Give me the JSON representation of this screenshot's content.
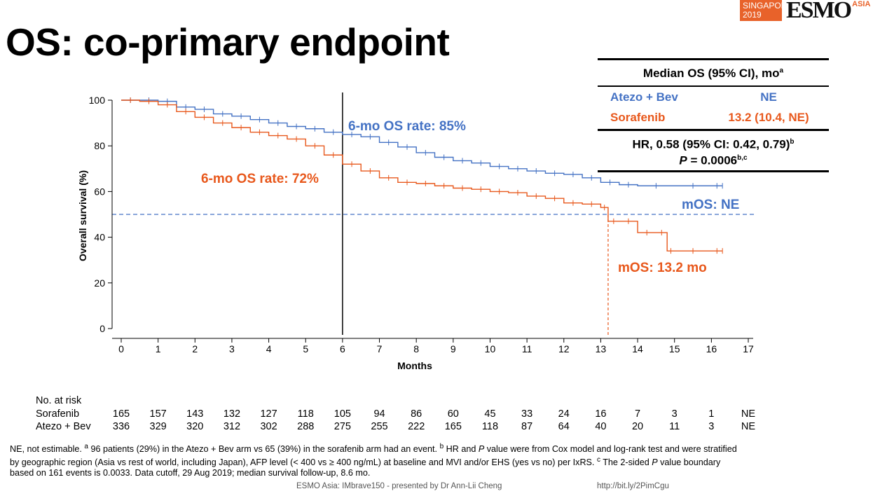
{
  "slide": {
    "title": "OS: co-primary endpoint",
    "logo": {
      "line1": "SINGAPORE",
      "line2": "2019",
      "word": "ESMO",
      "suffix": "ASIA"
    }
  },
  "table": {
    "header": "Median OS (95% CI), mo",
    "header_sup": "a",
    "rows": [
      {
        "arm": "Atezo + Bev",
        "value": "NE"
      },
      {
        "arm": "Sorafenib",
        "value": "13.2 (10.4, NE)"
      }
    ],
    "hr_text": "HR, 0.58 (95% CI: 0.42, 0.79)",
    "hr_sup": "b",
    "p_label": "P",
    "p_value": " = 0.0006",
    "p_sup": "b,c"
  },
  "risk_table": {
    "title": "No. at risk",
    "rows": [
      {
        "label": "Sorafenib",
        "values": [
          "165",
          "157",
          "143",
          "132",
          "127",
          "118",
          "105",
          "94",
          "86",
          "60",
          "45",
          "33",
          "24",
          "16",
          "7",
          "3",
          "1",
          "NE"
        ]
      },
      {
        "label": "Atezo + Bev",
        "values": [
          "336",
          "329",
          "320",
          "312",
          "302",
          "288",
          "275",
          "255",
          "222",
          "165",
          "118",
          "87",
          "64",
          "40",
          "20",
          "11",
          "3",
          "NE"
        ]
      }
    ]
  },
  "footnote": {
    "text_html": "NE, not estimable. <sup>a</sup> 96 patients (29%) in the Atezo + Bev arm vs 65 (39%) in the sorafenib arm had an event. <sup>b</sup> HR and <i>P</i> value were from Cox model and log-rank test and were stratified by geographic region (Asia vs rest of world, including Japan), AFP level (&lt; 400 vs &ge; 400 ng/mL) at baseline and MVI and/or EHS (yes vs no) per IxRS. <sup>c</sup> The 2-sided <i>P</i> value boundary based on 161 events is 0.0033. Data cutoff, 29 Aug 2019; median survival follow-up, 8.6 mo."
  },
  "credits": {
    "left": "ESMO Asia: IMbrave150 - presented by Dr Ann-Lii Cheng",
    "right": "http://bit.ly/2PimCgu"
  },
  "chart_data": {
    "type": "line",
    "title": "",
    "xlabel": "Months",
    "ylabel": "Overall survival (%)",
    "xlim": [
      0,
      17
    ],
    "ylim": [
      0,
      100
    ],
    "xticks": [
      0,
      1,
      2,
      3,
      4,
      5,
      6,
      7,
      8,
      9,
      10,
      11,
      12,
      13,
      14,
      15,
      16,
      17
    ],
    "yticks": [
      0,
      20,
      40,
      60,
      80,
      100
    ],
    "series": [
      {
        "name": "Atezo + Bev",
        "color": "#4472c4",
        "step": true,
        "x": [
          0,
          0.5,
          1,
          1.5,
          2,
          2.5,
          3,
          3.5,
          4,
          4.5,
          5,
          5.5,
          6,
          6.5,
          7,
          7.5,
          8,
          8.5,
          9,
          9.5,
          10,
          10.5,
          11,
          11.5,
          12,
          12.5,
          13,
          13.5,
          14,
          15,
          16,
          16.3
        ],
        "y": [
          100,
          100,
          99.5,
          97,
          96,
          94,
          93,
          91.5,
          90,
          88.5,
          87.5,
          86,
          85,
          84,
          81.5,
          79.5,
          77,
          75,
          73.5,
          72.5,
          71,
          70,
          69,
          68,
          67.5,
          66,
          64,
          63,
          62.5,
          62.5,
          62.5,
          62.5
        ]
      },
      {
        "name": "Sorafenib",
        "color": "#e8581c",
        "step": true,
        "x": [
          0,
          0.5,
          1,
          1.5,
          2,
          2.5,
          3,
          3.5,
          4,
          4.5,
          5,
          5.5,
          6,
          6.5,
          7,
          7.5,
          8,
          8.5,
          9,
          9.5,
          10,
          10.5,
          11,
          11.5,
          12,
          12.5,
          13,
          13.2,
          13.5,
          14,
          14.5,
          14.8,
          15,
          16,
          16.3
        ],
        "y": [
          100,
          99.5,
          98,
          95,
          92.5,
          90,
          88,
          86,
          84.5,
          83,
          80,
          76,
          72,
          69,
          66,
          64,
          63.5,
          62.5,
          61.5,
          61,
          60,
          59.5,
          58,
          57,
          55,
          54.5,
          53,
          47,
          47,
          42,
          42,
          34,
          34,
          34,
          34
        ]
      }
    ],
    "annotations": [
      {
        "text": "6-mo OS rate: 85%",
        "color": "#4472c4"
      },
      {
        "text": "6-mo OS rate: 72%",
        "color": "#e8581c"
      },
      {
        "text": "mOS: NE",
        "color": "#4472c4"
      },
      {
        "text": "mOS: 13.2 mo",
        "color": "#e8581c"
      }
    ],
    "reference_lines": [
      {
        "axis": "y",
        "value": 50,
        "style": "dashed",
        "color": "#4472c4"
      },
      {
        "axis": "x",
        "value": 6,
        "style": "solid",
        "color": "#000000"
      },
      {
        "axis": "x",
        "value": 13.2,
        "style": "dashed",
        "color": "#e8581c",
        "from": 0,
        "to": 50
      }
    ]
  }
}
